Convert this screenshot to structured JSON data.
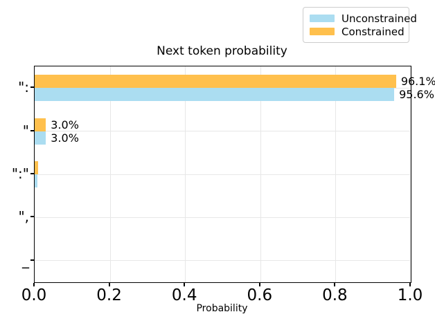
{
  "figure": {
    "background": "#ffffff",
    "spine_color": "#000000",
    "grid_color": "#e7e7e7",
    "legend_border_color": "#cccccc"
  },
  "legend": {
    "items": [
      {
        "label": "Unconstrained",
        "color": "#ABDDF1"
      },
      {
        "label": "Constrained",
        "color": "#FFC04D"
      }
    ]
  },
  "chart_data": {
    "type": "bar",
    "orientation": "horizontal",
    "title": "Next token probability",
    "xlabel": "Probability",
    "xlim": [
      0.0,
      1.0
    ],
    "xticks": [
      0.0,
      0.2,
      0.4,
      0.6,
      0.8,
      1.0
    ],
    "xtick_labels": [
      "0.0",
      "0.2",
      "0.4",
      "0.6",
      "0.8",
      "1.0"
    ],
    "grid": true,
    "legend_position": "upper right, above axes",
    "categories": [
      "\":",
      "\"",
      "\":\"",
      "\",",
      "_"
    ],
    "series": [
      {
        "name": "Constrained",
        "color": "#FFC04D",
        "row": "top",
        "values": [
          0.961,
          0.03,
          0.01,
          0.0,
          0.0
        ],
        "value_labels": [
          "96.1%",
          "3.0%",
          "",
          "",
          ""
        ]
      },
      {
        "name": "Unconstrained",
        "color": "#ABDDF1",
        "row": "bottom",
        "values": [
          0.956,
          0.03,
          0.008,
          0.0,
          0.0
        ],
        "value_labels": [
          "95.6%",
          "3.0%",
          "",
          "",
          ""
        ]
      }
    ]
  }
}
